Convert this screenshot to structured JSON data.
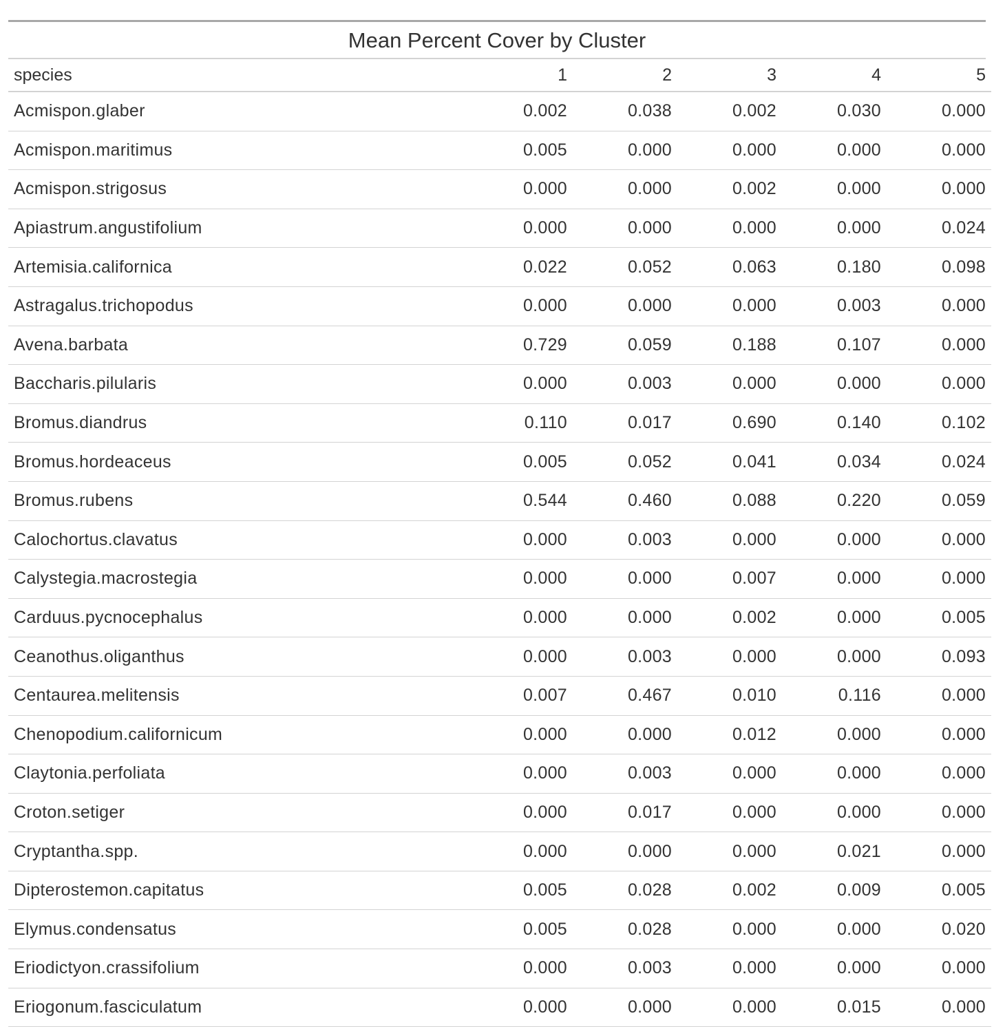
{
  "table": {
    "title": "Mean Percent Cover by Cluster",
    "columns": [
      "species",
      "1",
      "2",
      "3",
      "4",
      "5"
    ],
    "rows": [
      [
        "Acmispon.glaber",
        "0.002",
        "0.038",
        "0.002",
        "0.030",
        "0.000"
      ],
      [
        "Acmispon.maritimus",
        "0.005",
        "0.000",
        "0.000",
        "0.000",
        "0.000"
      ],
      [
        "Acmispon.strigosus",
        "0.000",
        "0.000",
        "0.002",
        "0.000",
        "0.000"
      ],
      [
        "Apiastrum.angustifolium",
        "0.000",
        "0.000",
        "0.000",
        "0.000",
        "0.024"
      ],
      [
        "Artemisia.californica",
        "0.022",
        "0.052",
        "0.063",
        "0.180",
        "0.098"
      ],
      [
        "Astragalus.trichopodus",
        "0.000",
        "0.000",
        "0.000",
        "0.003",
        "0.000"
      ],
      [
        "Avena.barbata",
        "0.729",
        "0.059",
        "0.188",
        "0.107",
        "0.000"
      ],
      [
        "Baccharis.pilularis",
        "0.000",
        "0.003",
        "0.000",
        "0.000",
        "0.000"
      ],
      [
        "Bromus.diandrus",
        "0.110",
        "0.017",
        "0.690",
        "0.140",
        "0.102"
      ],
      [
        "Bromus.hordeaceus",
        "0.005",
        "0.052",
        "0.041",
        "0.034",
        "0.024"
      ],
      [
        "Bromus.rubens",
        "0.544",
        "0.460",
        "0.088",
        "0.220",
        "0.059"
      ],
      [
        "Calochortus.clavatus",
        "0.000",
        "0.003",
        "0.000",
        "0.000",
        "0.000"
      ],
      [
        "Calystegia.macrostegia",
        "0.000",
        "0.000",
        "0.007",
        "0.000",
        "0.000"
      ],
      [
        "Carduus.pycnocephalus",
        "0.000",
        "0.000",
        "0.002",
        "0.000",
        "0.005"
      ],
      [
        "Ceanothus.oliganthus",
        "0.000",
        "0.003",
        "0.000",
        "0.000",
        "0.093"
      ],
      [
        "Centaurea.melitensis",
        "0.007",
        "0.467",
        "0.010",
        "0.116",
        "0.000"
      ],
      [
        "Chenopodium.californicum",
        "0.000",
        "0.000",
        "0.012",
        "0.000",
        "0.000"
      ],
      [
        "Claytonia.perfoliata",
        "0.000",
        "0.003",
        "0.000",
        "0.000",
        "0.000"
      ],
      [
        "Croton.setiger",
        "0.000",
        "0.017",
        "0.000",
        "0.000",
        "0.000"
      ],
      [
        "Cryptantha.spp.",
        "0.000",
        "0.000",
        "0.000",
        "0.021",
        "0.000"
      ],
      [
        "Dipterostemon.capitatus",
        "0.005",
        "0.028",
        "0.002",
        "0.009",
        "0.005"
      ],
      [
        "Elymus.condensatus",
        "0.005",
        "0.028",
        "0.000",
        "0.000",
        "0.020"
      ],
      [
        "Eriodictyon.crassifolium",
        "0.000",
        "0.003",
        "0.000",
        "0.000",
        "0.000"
      ],
      [
        "Eriogonum.fasciculatum",
        "0.000",
        "0.000",
        "0.000",
        "0.015",
        "0.000"
      ]
    ]
  }
}
